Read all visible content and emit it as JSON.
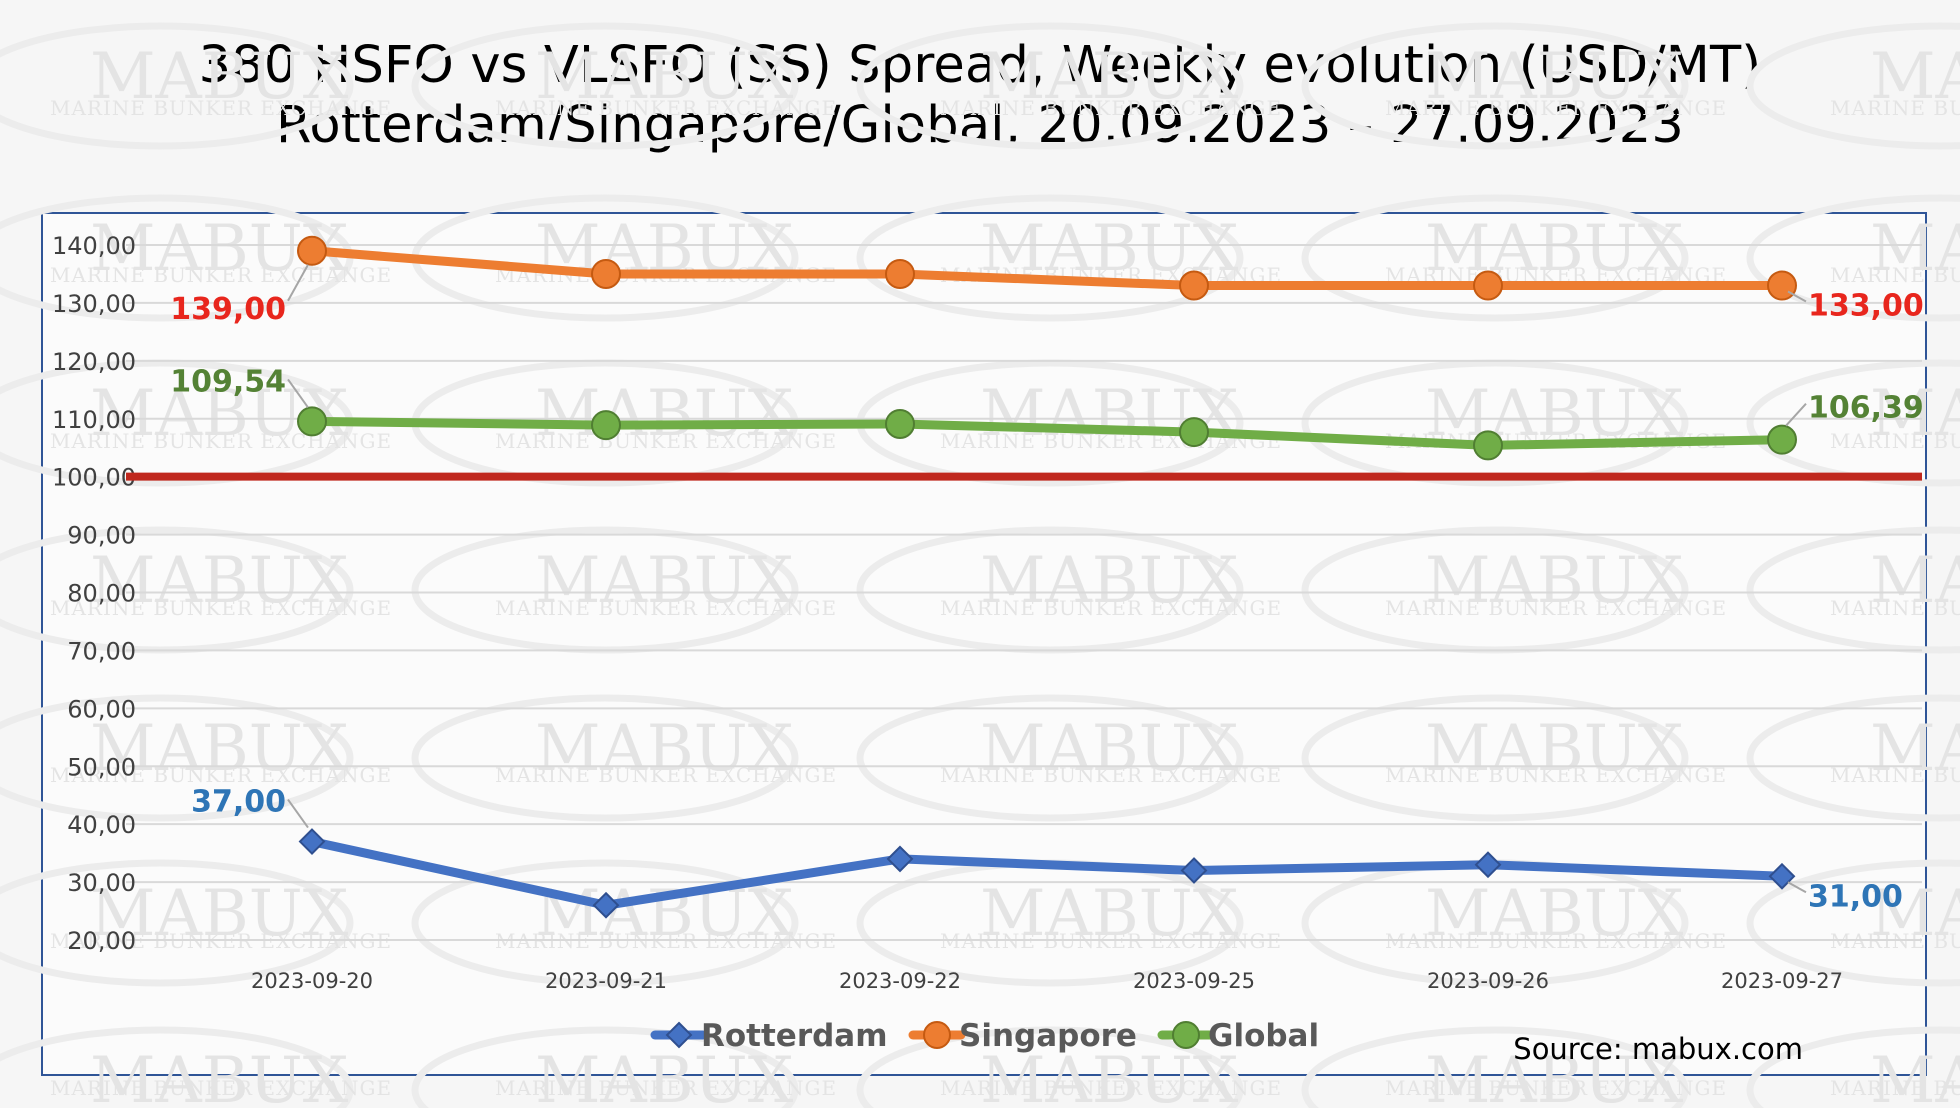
{
  "title": {
    "line1": "380 HSFO vs VLSFO (SS) Spread, Weekly evolution (USD/MT)",
    "line2": "Rotterdam/Singapore/Global, 20.09.2023 – 27.09.2023"
  },
  "watermark": {
    "brand": "MABUX",
    "subtitle": "MARINE BUNKER EXCHANGE"
  },
  "source": "Source: mabux.com",
  "colors": {
    "rotterdam": "#4472c4",
    "singapore": "#ed7d31",
    "global": "#70ad47",
    "reference": "#c0281e",
    "label_red": "#e8261d",
    "label_blue": "#2e75b6",
    "label_green": "#548235",
    "frame": "#2f5597"
  },
  "chart_data": {
    "type": "line",
    "categories": [
      "2023-09-20",
      "2023-09-21",
      "2023-09-22",
      "2023-09-25",
      "2023-09-26",
      "2023-09-27"
    ],
    "ylim": [
      20,
      145
    ],
    "yticks": [
      20,
      30,
      40,
      50,
      60,
      70,
      80,
      90,
      100,
      110,
      120,
      130,
      140
    ],
    "ytick_labels": [
      "20,00",
      "30,00",
      "40,00",
      "50,00",
      "60,00",
      "70,00",
      "80,00",
      "90,00",
      "100,00",
      "110,00",
      "120,00",
      "130,00",
      "140,00"
    ],
    "grid": true,
    "reference_line": {
      "value": 100
    },
    "legend_position": "bottom",
    "series": [
      {
        "name": "Rotterdam",
        "key": "rotterdam",
        "marker": "diamond",
        "values": [
          37,
          26,
          34,
          32,
          33,
          31
        ],
        "annotations": [
          {
            "index": 0,
            "text": "37,00",
            "placement": "upper-left",
            "color_key": "label_blue"
          },
          {
            "index": 5,
            "text": "31,00",
            "placement": "lower-right",
            "color_key": "label_blue"
          }
        ]
      },
      {
        "name": "Singapore",
        "key": "singapore",
        "marker": "circle",
        "values": [
          139,
          135,
          135,
          133,
          133,
          133
        ],
        "annotations": [
          {
            "index": 0,
            "text": "139,00",
            "placement": "lower-left",
            "color_key": "label_red"
          },
          {
            "index": 5,
            "text": "133,00",
            "placement": "lower-right",
            "color_key": "label_red"
          }
        ]
      },
      {
        "name": "Global",
        "key": "global",
        "marker": "circle",
        "values": [
          109.54,
          108.9,
          109.1,
          107.7,
          105.4,
          106.39
        ],
        "annotations": [
          {
            "index": 0,
            "text": "109,54",
            "placement": "upper-left",
            "color_key": "label_green"
          },
          {
            "index": 5,
            "text": "106,39",
            "placement": "upper-right",
            "color_key": "label_green"
          }
        ]
      }
    ]
  }
}
